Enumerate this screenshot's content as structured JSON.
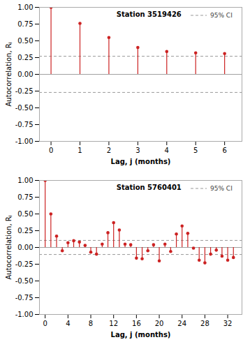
{
  "chart_data": [
    {
      "type": "stem",
      "annotation": "Station 3519426",
      "x": [
        0,
        1,
        2,
        3,
        4,
        5,
        6
      ],
      "values": [
        1.0,
        0.76,
        0.55,
        0.4,
        0.34,
        0.32,
        0.31
      ],
      "color": "#cc2222",
      "ci": {
        "name": "95% CI",
        "values": [
          0.27,
          -0.27
        ],
        "color": "#999999",
        "line_style": "dashed"
      },
      "legend": "upper right",
      "grid": false,
      "xlim": [
        -0.4,
        6.6
      ],
      "xticks": [
        0,
        1,
        2,
        3,
        4,
        5,
        6
      ],
      "ylim": [
        -1.0,
        1.0
      ],
      "yticks": [
        {
          "value": -1.0,
          "label": "-1.00"
        },
        {
          "value": -0.75,
          "label": "-0.75"
        },
        {
          "value": -0.5,
          "label": "-0.50"
        },
        {
          "value": -0.25,
          "label": "-0.25"
        },
        {
          "value": 0.0,
          "label": "0.00"
        },
        {
          "value": 0.25,
          "label": "0.25"
        },
        {
          "value": 0.5,
          "label": "0.50"
        },
        {
          "value": 0.75,
          "label": "0.75"
        },
        {
          "value": 1.0,
          "label": "1.00"
        }
      ],
      "xlabel": "Lag, j (months)",
      "ylabel": "Autocorrelation, Rⱼ"
    },
    {
      "type": "stem",
      "annotation": "Station 5760401",
      "x": [
        0,
        1,
        2,
        3,
        4,
        5,
        6,
        7,
        8,
        9,
        10,
        11,
        12,
        13,
        14,
        15,
        16,
        17,
        18,
        19,
        20,
        21,
        22,
        23,
        24,
        25,
        26,
        27,
        28,
        29,
        30,
        31,
        32,
        33
      ],
      "values": [
        1.0,
        0.5,
        0.17,
        -0.05,
        0.07,
        0.1,
        0.08,
        0.03,
        -0.07,
        -0.1,
        0.05,
        0.22,
        0.37,
        0.26,
        0.05,
        0.04,
        -0.16,
        -0.17,
        -0.05,
        0.04,
        -0.2,
        0.05,
        -0.06,
        0.2,
        0.32,
        0.21,
        -0.01,
        -0.19,
        -0.23,
        -0.1,
        -0.04,
        -0.13,
        -0.19,
        -0.15
      ],
      "color": "#cc2222",
      "ci": {
        "name": "95% CI",
        "values": [
          0.105,
          -0.105
        ],
        "color": "#999999",
        "line_style": "dashed"
      },
      "legend": "upper right",
      "grid": false,
      "xlim": [
        -1.0,
        34.5
      ],
      "xticks": [
        0,
        4,
        8,
        12,
        16,
        20,
        24,
        28,
        32
      ],
      "ylim": [
        -1.0,
        1.0
      ],
      "yticks": [
        {
          "value": -1.0,
          "label": "-1.00"
        },
        {
          "value": -0.75,
          "label": "-0.75"
        },
        {
          "value": -0.5,
          "label": "-0.50"
        },
        {
          "value": -0.25,
          "label": "-0.25"
        },
        {
          "value": 0.0,
          "label": "0.00"
        },
        {
          "value": 0.25,
          "label": "0.25"
        },
        {
          "value": 0.5,
          "label": "0.50"
        },
        {
          "value": 0.75,
          "label": "0.75"
        },
        {
          "value": 1.0,
          "label": "1.00"
        }
      ],
      "xlabel": "Lag, j (months)",
      "ylabel": "Autocorrelation, Rⱼ"
    }
  ]
}
